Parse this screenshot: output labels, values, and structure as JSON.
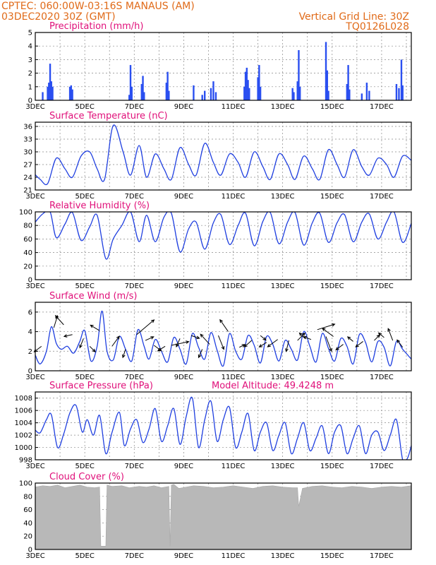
{
  "header": {
    "station_line": "CPTEC:   060:00W-03:16S   MANAUS (AM)",
    "run_line": "03DEC2020 30Z (GMT)",
    "grid_note": "Vertical Grid Line: 30Z",
    "model_id": "TQ0126L028"
  },
  "colors": {
    "header": "#e06a18",
    "panel_title": "#e0107a",
    "series": "#1f3fe0",
    "bars": "#2a4ff0",
    "cloud_fill": "#b8b8b8"
  },
  "x_axis": {
    "day_labels": [
      "3DEC",
      "5DEC",
      "7DEC",
      "9DEC",
      "11DEC",
      "13DEC",
      "15DEC",
      "17DEC"
    ],
    "day_start": 3,
    "day_end": 18.2
  },
  "chart_data": [
    {
      "id": "precipitation",
      "type": "bar",
      "title": "Precipitation  (mm/h)",
      "ylim": [
        0,
        5
      ],
      "yticks": [
        0,
        1,
        2,
        3,
        4,
        5
      ],
      "grid": true,
      "x": [
        3.3,
        3.5,
        3.55,
        3.6,
        3.65,
        3.7,
        4.4,
        4.45,
        4.5,
        6.8,
        6.85,
        6.9,
        7.3,
        7.35,
        7.4,
        8.3,
        8.35,
        8.4,
        9.4,
        9.75,
        9.85,
        10.1,
        10.2,
        10.3,
        11.45,
        11.5,
        11.55,
        11.6,
        11.65,
        12.0,
        12.05,
        12.1,
        13.4,
        13.45,
        13.6,
        13.65,
        13.7,
        14.75,
        14.8,
        14.85,
        15.6,
        15.65,
        15.7,
        16.2,
        16.4,
        16.5,
        17.6,
        17.7,
        17.8,
        17.85
      ],
      "values": [
        0.6,
        1.0,
        1.3,
        2.7,
        1.4,
        1.0,
        1.0,
        1.1,
        0.8,
        0.4,
        2.6,
        1.0,
        1.2,
        1.8,
        0.6,
        1.3,
        2.1,
        0.7,
        1.1,
        0.4,
        0.7,
        0.9,
        1.4,
        0.6,
        1.0,
        2.1,
        2.4,
        1.5,
        0.9,
        1.7,
        2.6,
        1.0,
        0.9,
        0.6,
        1.4,
        3.7,
        1.0,
        4.3,
        2.2,
        0.7,
        1.2,
        2.6,
        0.8,
        0.5,
        1.3,
        0.7,
        1.2,
        0.9,
        3.0,
        1.1
      ]
    },
    {
      "id": "temperature",
      "type": "line",
      "title": "Surface Temperature (nC)",
      "ylim": [
        21,
        37
      ],
      "yticks": [
        21,
        24,
        27,
        30,
        33,
        36
      ],
      "grid": true,
      "x": [
        3.0,
        3.2,
        3.5,
        3.85,
        4.2,
        4.5,
        4.85,
        5.2,
        5.5,
        5.8,
        6.15,
        6.55,
        6.85,
        7.2,
        7.5,
        7.85,
        8.2,
        8.5,
        8.85,
        9.2,
        9.5,
        9.85,
        10.2,
        10.5,
        10.85,
        11.2,
        11.5,
        11.85,
        12.2,
        12.5,
        12.85,
        13.2,
        13.5,
        13.85,
        14.2,
        14.5,
        14.85,
        15.2,
        15.5,
        15.85,
        16.2,
        16.5,
        16.85,
        17.2,
        17.5,
        17.85,
        18.2
      ],
      "values": [
        24.6,
        23.5,
        22.5,
        28.5,
        26.0,
        24.0,
        29.0,
        30.0,
        26.0,
        23.5,
        36.2,
        30.0,
        24.5,
        31.5,
        24.0,
        29.5,
        26.0,
        23.5,
        31.0,
        27.0,
        24.5,
        32.0,
        27.5,
        24.5,
        29.5,
        27.5,
        24.0,
        30.0,
        26.5,
        23.5,
        29.5,
        27.0,
        23.5,
        29.0,
        26.0,
        23.5,
        30.5,
        27.0,
        24.0,
        30.5,
        26.5,
        24.5,
        28.5,
        27.0,
        24.0,
        29.0,
        28.0
      ]
    },
    {
      "id": "humidity",
      "type": "line",
      "title": "Relative Humidity (%)",
      "ylim": [
        0,
        100
      ],
      "yticks": [
        0,
        20,
        40,
        60,
        80,
        100
      ],
      "grid": true,
      "x": [
        3.0,
        3.3,
        3.6,
        3.85,
        4.2,
        4.5,
        4.85,
        5.2,
        5.5,
        5.85,
        6.15,
        6.5,
        6.85,
        7.2,
        7.5,
        7.85,
        8.2,
        8.5,
        8.85,
        9.2,
        9.5,
        9.85,
        10.2,
        10.5,
        10.85,
        11.2,
        11.5,
        11.85,
        12.2,
        12.5,
        12.85,
        13.2,
        13.5,
        13.85,
        14.2,
        14.5,
        14.85,
        15.2,
        15.5,
        15.85,
        16.2,
        16.5,
        16.85,
        17.2,
        17.5,
        17.85,
        18.2
      ],
      "values": [
        85,
        97,
        100,
        62,
        82,
        99,
        58,
        78,
        95,
        31,
        60,
        80,
        100,
        56,
        95,
        56,
        92,
        98,
        41,
        75,
        85,
        45,
        84,
        96,
        52,
        80,
        98,
        50,
        86,
        99,
        53,
        85,
        99,
        51,
        84,
        98,
        55,
        84,
        96,
        56,
        85,
        97,
        60,
        85,
        100,
        55,
        83
      ]
    },
    {
      "id": "wind",
      "type": "line",
      "title": "Surface Wind  (m/s)",
      "ylim": [
        0,
        7
      ],
      "yticks": [
        0,
        2,
        4,
        6
      ],
      "grid": true,
      "note": "wind-direction arrows drawn above the speed curve",
      "x": [
        3.0,
        3.2,
        3.45,
        3.65,
        3.85,
        4.05,
        4.3,
        4.55,
        4.8,
        5.0,
        5.25,
        5.5,
        5.7,
        5.9,
        6.15,
        6.4,
        6.65,
        6.9,
        7.15,
        7.4,
        7.6,
        7.85,
        8.1,
        8.35,
        8.6,
        8.85,
        9.1,
        9.35,
        9.6,
        9.85,
        10.1,
        10.35,
        10.6,
        10.85,
        11.1,
        11.35,
        11.6,
        11.85,
        12.1,
        12.35,
        12.6,
        12.85,
        13.1,
        13.35,
        13.6,
        13.85,
        14.1,
        14.35,
        14.6,
        14.85,
        15.1,
        15.35,
        15.6,
        15.85,
        16.1,
        16.35,
        16.6,
        16.85,
        17.1,
        17.35,
        17.6,
        17.85,
        18.2
      ],
      "values": [
        1.6,
        0.7,
        2.0,
        4.5,
        2.8,
        2.2,
        2.5,
        1.8,
        3.0,
        4.1,
        1.0,
        2.5,
        6.1,
        2.0,
        1.1,
        3.5,
        2.2,
        1.0,
        4.2,
        2.5,
        1.2,
        3.2,
        2.0,
        0.9,
        3.4,
        2.2,
        0.7,
        3.8,
        2.4,
        1.2,
        3.9,
        2.1,
        0.5,
        3.8,
        2.0,
        1.2,
        3.6,
        2.6,
        0.8,
        3.5,
        2.7,
        1.0,
        3.1,
        2.2,
        1.1,
        4.0,
        2.5,
        0.9,
        3.8,
        2.3,
        1.0,
        3.3,
        2.5,
        0.7,
        3.7,
        2.9,
        0.9,
        3.0,
        2.4,
        0.5,
        3.0,
        2.2,
        1.2
      ],
      "arrows": {
        "x": [
          3.25,
          3.75,
          4.15,
          4.5,
          4.95,
          5.2,
          5.6,
          6.1,
          6.65,
          7.1,
          7.45,
          7.8,
          8.25,
          8.5,
          8.85,
          9.3,
          9.75,
          10.05,
          10.4,
          10.8,
          11.25,
          11.75,
          12.1,
          12.35,
          12.8,
          13.25,
          13.6,
          13.9,
          14.15,
          14.4,
          14.75,
          15.05,
          15.45,
          15.85,
          16.25,
          16.7,
          17.1,
          17.45,
          17.85
        ],
        "y": [
          2.5,
          4.4,
          4.7,
          3.7,
          3.3,
          2.5,
          4.1,
          2.5,
          2.2,
          3.7,
          3.1,
          2.6,
          2.5,
          2.6,
          3.3,
          3.6,
          2.2,
          2.7,
          3.6,
          4.0,
          2.4,
          3.1,
          3.6,
          2.9,
          3.2,
          3.1,
          3.1,
          3.3,
          3.2,
          4.2,
          3.5,
          3.5,
          2.7,
          3.0,
          3.0,
          3.1,
          3.4,
          3.1,
          2.4
        ],
        "u": [
          -0.8,
          0.4,
          -0.9,
          -0.9,
          -0.4,
          0.6,
          -1.0,
          0.8,
          -0.3,
          1.9,
          0.9,
          0.8,
          -0.8,
          1.9,
          -0.4,
          0.9,
          -0.4,
          -1.0,
          0.6,
          -0.9,
          0.6,
          -0.8,
          0.6,
          -0.8,
          -1.1,
          -0.3,
          0.8,
          -0.6,
          -0.8,
          1.9,
          0.6,
          -1.2,
          -0.8,
          -0.6,
          -0.8,
          0.6,
          -0.6,
          -0.5,
          -0.6
        ],
        "v": [
          -0.6,
          1.3,
          1.0,
          -0.2,
          -1.0,
          -0.6,
          0.6,
          1.1,
          -0.9,
          1.6,
          0.4,
          -0.6,
          -0.5,
          0.4,
          -0.9,
          -0.3,
          -0.9,
          1.1,
          -1.5,
          1.3,
          0.3,
          -0.7,
          -0.5,
          -0.5,
          -0.8,
          -1.2,
          0.8,
          0.6,
          0.3,
          0.6,
          -1.6,
          0.9,
          -0.6,
          0.5,
          -0.6,
          0.6,
          0.5,
          1.3,
          0.8
        ]
      }
    },
    {
      "id": "pressure",
      "type": "line",
      "title": "Surface Pressure (hPa)",
      "annotation": "Model Altitude: 49.4248 m",
      "ylim": [
        998,
        1009
      ],
      "yticks": [
        998,
        1000,
        1002,
        1004,
        1006,
        1008
      ],
      "grid": true,
      "x": [
        3.0,
        3.2,
        3.45,
        3.65,
        3.9,
        4.15,
        4.4,
        4.65,
        4.9,
        5.1,
        5.35,
        5.6,
        5.85,
        6.1,
        6.4,
        6.6,
        6.85,
        7.1,
        7.35,
        7.6,
        7.85,
        8.1,
        8.35,
        8.6,
        8.85,
        9.1,
        9.35,
        9.6,
        9.85,
        10.1,
        10.35,
        10.6,
        10.85,
        11.1,
        11.35,
        11.6,
        11.85,
        12.1,
        12.35,
        12.6,
        12.85,
        13.1,
        13.35,
        13.6,
        13.85,
        14.1,
        14.35,
        14.6,
        14.85,
        15.1,
        15.35,
        15.6,
        15.85,
        16.1,
        16.35,
        16.6,
        16.85,
        17.1,
        17.35,
        17.6,
        17.85,
        18.05,
        18.2
      ],
      "values": [
        1002.8,
        1002.4,
        1004.5,
        1005.3,
        1000.0,
        1002.2,
        1005.6,
        1006.8,
        1002.5,
        1004.5,
        1002.0,
        1005.2,
        999.0,
        1002.4,
        1005.7,
        1000.3,
        1003.0,
        1004.5,
        1000.8,
        1003.0,
        1006.3,
        1001.0,
        1003.5,
        1006.3,
        1000.5,
        1005.0,
        1008.0,
        1000.0,
        1004.5,
        1007.5,
        1001.0,
        1004.5,
        1006.5,
        1000.0,
        1002.5,
        1005.5,
        999.5,
        1002.5,
        1004.0,
        999.5,
        1002.0,
        1004.0,
        999.0,
        1001.5,
        1004.0,
        999.5,
        1001.5,
        1003.5,
        999.0,
        1002.5,
        1003.5,
        999.0,
        1001.5,
        1003.5,
        999.0,
        1002.0,
        1002.5,
        999.5,
        1002.0,
        1004.5,
        998.0,
        998.3,
        1000.3
      ]
    },
    {
      "id": "cloud_cover",
      "type": "area",
      "title": "Cloud Cover (%)",
      "ylim": [
        0,
        100
      ],
      "yticks": [
        0,
        20,
        40,
        60,
        80,
        100
      ],
      "grid": true,
      "x": [
        3.0,
        3.3,
        3.6,
        3.9,
        4.2,
        4.5,
        4.8,
        5.1,
        5.4,
        5.6,
        5.65,
        5.85,
        5.9,
        6.1,
        6.5,
        6.8,
        7.2,
        7.5,
        7.8,
        8.1,
        8.4,
        8.45,
        8.5,
        8.6,
        8.8,
        9.1,
        9.4,
        9.8,
        10.2,
        10.6,
        11.0,
        11.4,
        11.8,
        12.2,
        12.6,
        13.0,
        13.4,
        13.6,
        13.65,
        13.8,
        14.2,
        14.6,
        15.0,
        15.4,
        15.8,
        16.2,
        16.6,
        17.0,
        17.4,
        17.8,
        18.2
      ],
      "values": [
        94,
        96,
        95,
        97,
        93,
        95,
        97,
        94,
        93,
        94,
        5,
        5,
        97,
        95,
        96,
        93,
        95,
        94,
        96,
        93,
        95,
        5,
        97,
        98,
        92,
        94,
        96,
        95,
        93,
        94,
        96,
        94,
        92,
        95,
        96,
        94,
        93,
        93,
        65,
        92,
        95,
        96,
        94,
        93,
        95,
        94,
        92,
        94,
        95,
        94,
        96
      ]
    }
  ]
}
